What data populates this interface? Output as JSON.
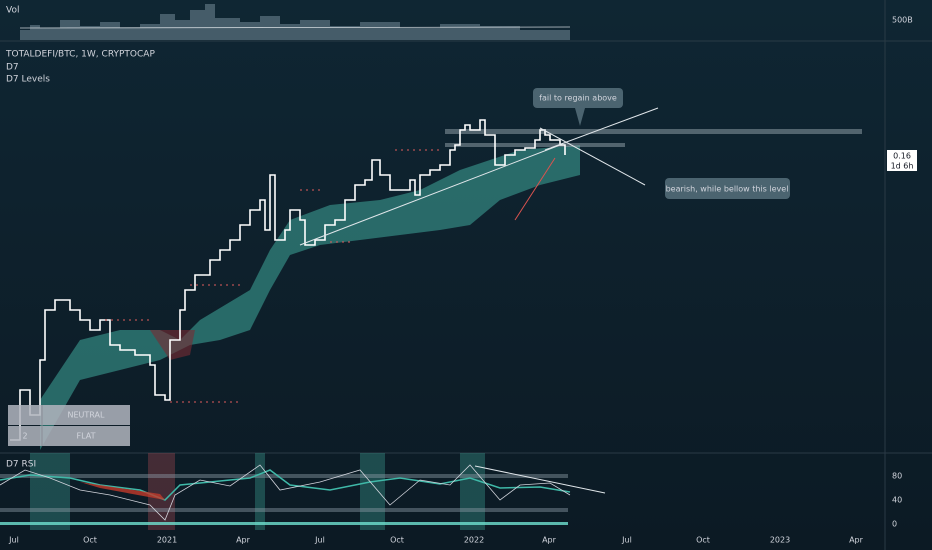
{
  "volume_panel": {
    "label": "Vol",
    "scale_label": "500B"
  },
  "main_panel": {
    "symbol": "TOTALDEFI/BTC, 1W, CRYPTOCAP",
    "indicators": [
      "D7",
      "D7 Levels"
    ],
    "price_label": {
      "price": "0.16",
      "countdown": "1d 6h"
    },
    "annotations": [
      "fail to regain above",
      "bearish, while bellow this level"
    ]
  },
  "table": {
    "rows": [
      {
        "label": "NEUTRAL"
      },
      {
        "count": "2",
        "label": "FLAT"
      }
    ]
  },
  "rsi_panel": {
    "label": "D7 RSI",
    "axis_labels": [
      "80",
      "40",
      "0"
    ]
  },
  "time_axis": [
    "Jul",
    "Oct",
    "2021",
    "Apr",
    "Jul",
    "Oct",
    "2022",
    "Apr",
    "Jul",
    "Oct",
    "2023",
    "Apr"
  ]
}
